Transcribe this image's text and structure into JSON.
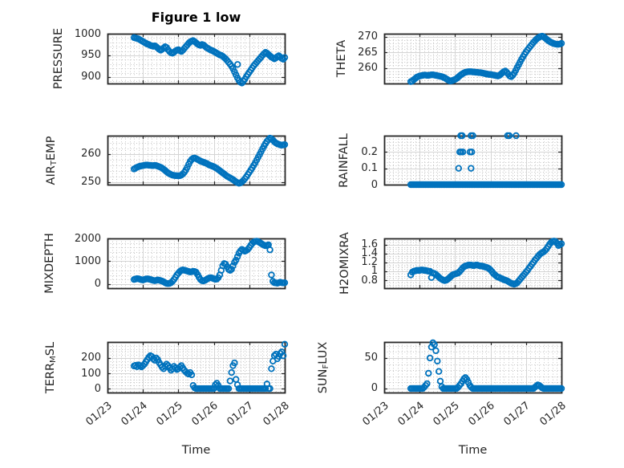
{
  "figure": {
    "title": "Figure 1 low",
    "xlabel": "Time",
    "x_tick_labels": [
      "01/23",
      "01/24",
      "01/25",
      "01/26",
      "01/27",
      "01/28"
    ]
  },
  "style": {
    "marker_color": "#0072BD",
    "axis_color": "#262626",
    "major_grid_color": "#d4d4d4",
    "minor_grid_color": "#c3c3c3",
    "background": "#ffffff"
  },
  "chart_data": [
    {
      "type": "scatter",
      "name": "PRESSURE",
      "col": 0,
      "row": 0,
      "ylabel": [
        {
          "text": "PRESSURE"
        }
      ],
      "ylim": [
        885,
        1000
      ],
      "yticks": [
        900,
        950,
        1000
      ],
      "ytick_labels": [
        "900",
        "950",
        "1000"
      ],
      "yminor": 10,
      "x_range_days": [
        0,
        5
      ],
      "t0": 0.75,
      "dt_days": 0.0416667,
      "values": [
        991,
        990,
        989,
        988,
        986,
        984,
        982,
        980,
        978,
        976,
        975,
        973,
        972,
        971,
        972,
        970,
        967,
        964,
        962,
        964,
        967,
        970,
        968,
        963,
        959,
        956,
        955,
        957,
        960,
        962,
        963,
        961,
        959,
        962,
        966,
        970,
        974,
        978,
        981,
        983,
        984,
        982,
        979,
        976,
        974,
        973,
        975,
        974,
        971,
        968,
        966,
        964,
        962,
        961,
        959,
        957,
        955,
        953,
        951,
        950,
        948,
        945,
        942,
        938,
        934,
        930,
        925,
        919,
        912,
        905,
        898,
        892,
        888,
        886,
        890,
        895,
        901,
        906,
        911,
        916,
        921,
        926,
        930,
        934,
        938,
        942,
        946,
        950,
        954,
        957,
        955,
        952,
        949,
        946,
        944,
        942,
        944,
        947,
        949,
        946,
        943,
        941,
        945
      ],
      "extra_points": [
        [
          3.67,
          929
        ]
      ]
    },
    {
      "type": "scatter",
      "name": "THETA",
      "col": 1,
      "row": 0,
      "ylabel": [
        {
          "text": "THETA"
        }
      ],
      "ylim": [
        255,
        271
      ],
      "yticks": [
        260,
        265,
        270
      ],
      "ytick_labels": [
        "260",
        "265",
        "270"
      ],
      "yminor": 1,
      "x_range_days": [
        0,
        5
      ],
      "t0": 0.75,
      "dt_days": 0.0416667,
      "values": [
        255.6,
        255.8,
        256.2,
        256.6,
        257.0,
        257.2,
        257.4,
        257.5,
        257.6,
        257.7,
        257.7,
        257.6,
        257.6,
        257.7,
        257.8,
        257.8,
        257.7,
        257.6,
        257.5,
        257.4,
        257.3,
        257.2,
        257.0,
        256.8,
        256.5,
        256.2,
        255.9,
        255.8,
        255.9,
        256.1,
        256.3,
        256.6,
        257.0,
        257.4,
        257.8,
        258.1,
        258.4,
        258.6,
        258.7,
        258.8,
        258.8,
        258.8,
        258.7,
        258.7,
        258.6,
        258.6,
        258.5,
        258.5,
        258.4,
        258.3,
        258.2,
        258.1,
        258.0,
        257.9,
        257.9,
        257.8,
        257.7,
        257.6,
        257.5,
        257.4,
        257.6,
        258.0,
        258.4,
        258.8,
        259.0,
        258.6,
        258.0,
        257.4,
        257.2,
        257.6,
        258.3,
        259.2,
        260.1,
        261.0,
        261.9,
        262.8,
        263.6,
        264.4,
        265.1,
        265.8,
        266.4,
        267.0,
        267.6,
        268.2,
        268.7,
        269.2,
        269.6,
        269.9,
        270.1,
        270.2,
        270.0,
        269.6,
        269.2,
        268.8,
        268.5,
        268.2,
        268.0,
        267.8,
        267.7,
        267.6,
        267.6,
        267.7,
        267.9
      ],
      "extra_points": []
    },
    {
      "type": "scatter",
      "name": "AIR_TEMP",
      "col": 0,
      "row": 1,
      "ylabel": [
        {
          "text": "AIR"
        },
        {
          "sub": "T"
        },
        {
          "text": "EMP"
        }
      ],
      "ylim": [
        249,
        266.5
      ],
      "yticks": [
        250,
        260
      ],
      "ytick_labels": [
        "250",
        "260"
      ],
      "yminor": 2,
      "x_range_days": [
        0,
        5
      ],
      "t0": 0.75,
      "dt_days": 0.0416667,
      "values": [
        254.6,
        254.9,
        255.2,
        255.4,
        255.6,
        255.7,
        255.8,
        255.9,
        256.0,
        256.0,
        255.9,
        255.9,
        255.8,
        255.8,
        255.9,
        255.8,
        255.6,
        255.4,
        255.2,
        254.9,
        254.5,
        254.1,
        253.6,
        253.2,
        252.9,
        252.6,
        252.4,
        252.3,
        252.2,
        252.2,
        252.1,
        252.2,
        252.4,
        252.8,
        253.4,
        254.2,
        255.2,
        256.3,
        257.3,
        258.0,
        258.4,
        258.5,
        258.3,
        258.0,
        257.7,
        257.4,
        257.2,
        257.0,
        256.8,
        256.6,
        256.3,
        256.0,
        255.8,
        255.6,
        255.4,
        255.1,
        254.8,
        254.4,
        254.0,
        253.6,
        253.2,
        252.8,
        252.4,
        252.0,
        251.7,
        251.4,
        251.1,
        250.8,
        250.4,
        250.0,
        249.7,
        249.5,
        249.6,
        250.0,
        250.5,
        251.1,
        251.8,
        252.6,
        253.4,
        254.2,
        255.0,
        255.9,
        256.8,
        257.8,
        258.8,
        259.8,
        260.8,
        261.8,
        262.8,
        263.7,
        264.5,
        265.1,
        265.6,
        265.4,
        264.9,
        264.3,
        263.9,
        263.6,
        263.4,
        263.2,
        263.1,
        263.2,
        263.3
      ],
      "extra_points": []
    },
    {
      "type": "scatter",
      "name": "RAINFALL",
      "col": 1,
      "row": 1,
      "ylabel": [
        {
          "text": "RAINFALL"
        }
      ],
      "ylim": [
        0,
        0.3
      ],
      "yticks": [
        0,
        0.1,
        0.2
      ],
      "ytick_labels": [
        "0",
        "0.1",
        "0.2"
      ],
      "yminor": 0.02,
      "x_range_days": [
        0,
        5
      ],
      "t0": 0.75,
      "dt_days": 0.0416667,
      "values": [
        0,
        0,
        0,
        0,
        0,
        0,
        0,
        0,
        0,
        0,
        0,
        0,
        0,
        0,
        0,
        0,
        0,
        0,
        0,
        0,
        0,
        0,
        0,
        0,
        0,
        0,
        0,
        0,
        0,
        0,
        0,
        0,
        0,
        0,
        0,
        0,
        0,
        0,
        0,
        0,
        0,
        0,
        0,
        0,
        0,
        0,
        0,
        0,
        0,
        0,
        0,
        0,
        0,
        0,
        0,
        0,
        0,
        0,
        0,
        0,
        0,
        0,
        0,
        0,
        0,
        0,
        0,
        0,
        0,
        0,
        0,
        0,
        0,
        0,
        0,
        0,
        0,
        0,
        0,
        0,
        0,
        0,
        0,
        0,
        0,
        0,
        0,
        0,
        0,
        0,
        0,
        0,
        0,
        0,
        0,
        0,
        0,
        0,
        0,
        0,
        0,
        0,
        0
      ],
      "extra_points": [
        [
          2.1,
          0.1
        ],
        [
          2.45,
          0.1
        ],
        [
          2.13,
          0.2
        ],
        [
          2.17,
          0.2
        ],
        [
          2.22,
          0.2
        ],
        [
          2.42,
          0.2
        ],
        [
          2.47,
          0.2
        ],
        [
          2.16,
          0.3
        ],
        [
          2.2,
          0.3
        ],
        [
          2.45,
          0.3
        ],
        [
          2.5,
          0.3
        ],
        [
          3.48,
          0.3
        ],
        [
          3.53,
          0.3
        ],
        [
          3.72,
          0.3
        ]
      ]
    },
    {
      "type": "scatter",
      "name": "MIXDEPTH",
      "col": 0,
      "row": 2,
      "ylabel": [
        {
          "text": "MIXDEPTH"
        }
      ],
      "ylim": [
        -180,
        2000
      ],
      "yticks": [
        0,
        1000,
        2000
      ],
      "ytick_labels": [
        "0",
        "1000",
        "2000"
      ],
      "yminor": 200,
      "x_range_days": [
        0,
        5
      ],
      "t0": 0.75,
      "dt_days": 0.0416667,
      "values": [
        200,
        220,
        240,
        230,
        210,
        190,
        180,
        200,
        220,
        230,
        220,
        200,
        180,
        160,
        150,
        160,
        180,
        170,
        150,
        130,
        100,
        60,
        30,
        20,
        30,
        60,
        120,
        200,
        300,
        400,
        480,
        550,
        600,
        620,
        610,
        590,
        570,
        550,
        530,
        540,
        560,
        550,
        520,
        420,
        300,
        200,
        150,
        140,
        160,
        200,
        240,
        270,
        280,
        260,
        230,
        210,
        220,
        280,
        400,
        600,
        800,
        900,
        870,
        760,
        640,
        600,
        650,
        800,
        950,
        1050,
        1200,
        1350,
        1450,
        1520,
        1480,
        1440,
        1470,
        1520,
        1600,
        1700,
        1780,
        1840,
        1870,
        1880,
        1860,
        1820,
        1780,
        1740,
        1700,
        1680,
        1700,
        1720,
        1500,
        400,
        120,
        60,
        50,
        40,
        60,
        80,
        60,
        50,
        60
      ],
      "extra_points": []
    },
    {
      "type": "scatter",
      "name": "H2OMIXRA",
      "col": 1,
      "row": 2,
      "ylabel": [
        {
          "text": "H2OMIXRA"
        }
      ],
      "ylim": [
        0.62,
        1.74
      ],
      "yticks": [
        0.8,
        1,
        1.2,
        1.4,
        1.6
      ],
      "ytick_labels": [
        "0.8",
        "1",
        "1.2",
        "1.4",
        "1.6"
      ],
      "yminor": 0.05,
      "x_range_days": [
        0,
        5
      ],
      "t0": 0.75,
      "dt_days": 0.0416667,
      "values": [
        0.92,
        0.98,
        1.0,
        1.01,
        1.02,
        1.02,
        1.02,
        1.03,
        1.03,
        1.02,
        1.02,
        1.01,
        1.0,
        1.0,
        0.86,
        0.96,
        0.95,
        0.93,
        0.9,
        0.87,
        0.84,
        0.82,
        0.8,
        0.79,
        0.8,
        0.82,
        0.85,
        0.88,
        0.91,
        0.93,
        0.94,
        0.95,
        0.96,
        0.99,
        1.03,
        1.07,
        1.1,
        1.12,
        1.13,
        1.14,
        1.14,
        1.14,
        1.13,
        1.13,
        1.14,
        1.14,
        1.13,
        1.12,
        1.12,
        1.11,
        1.1,
        1.09,
        1.08,
        1.06,
        1.03,
        0.99,
        0.95,
        0.92,
        0.89,
        0.87,
        0.86,
        0.84,
        0.83,
        0.81,
        0.8,
        0.79,
        0.77,
        0.75,
        0.73,
        0.72,
        0.71,
        0.72,
        0.74,
        0.78,
        0.82,
        0.86,
        0.9,
        0.94,
        0.98,
        1.02,
        1.07,
        1.11,
        1.16,
        1.2,
        1.25,
        1.29,
        1.33,
        1.37,
        1.4,
        1.42,
        1.44,
        1.47,
        1.51,
        1.56,
        1.61,
        1.65,
        1.67,
        1.68,
        1.67,
        1.63,
        1.58,
        1.6,
        1.62
      ],
      "extra_points": []
    },
    {
      "type": "scatter",
      "name": "TERR_MSL",
      "col": 0,
      "row": 3,
      "ylabel": [
        {
          "text": "TERR"
        },
        {
          "sub": "M"
        },
        {
          "text": "SL"
        }
      ],
      "ylim": [
        -26,
        305
      ],
      "yticks": [
        0,
        100,
        200
      ],
      "ytick_labels": [
        "0",
        "100",
        "200"
      ],
      "yminor": 20,
      "x_range_days": [
        0,
        5
      ],
      "t0": 0.75,
      "dt_days": 0.0416667,
      "values": [
        148,
        152,
        143,
        155,
        150,
        142,
        150,
        160,
        175,
        190,
        205,
        215,
        210,
        195,
        185,
        200,
        190,
        170,
        155,
        140,
        130,
        145,
        160,
        150,
        135,
        120,
        130,
        145,
        135,
        125,
        130,
        140,
        150,
        135,
        120,
        110,
        100,
        95,
        105,
        90,
        20,
        5,
        0,
        0,
        0,
        0,
        0,
        0,
        0,
        0,
        0,
        0,
        0,
        0,
        0,
        25,
        35,
        20,
        0,
        0,
        0,
        0,
        0,
        0,
        0,
        50,
        105,
        150,
        168,
        60,
        25,
        0,
        0,
        0,
        0,
        0,
        0,
        0,
        0,
        0,
        0,
        0,
        0,
        0,
        0,
        0,
        0,
        0,
        0,
        0,
        30,
        0,
        0,
        130,
        180,
        215,
        225,
        195,
        210,
        230,
        240,
        215,
        290
      ],
      "extra_points": []
    },
    {
      "type": "scatter",
      "name": "SUN_FLUX",
      "col": 1,
      "row": 3,
      "ylabel": [
        {
          "text": "SUN"
        },
        {
          "sub": "F"
        },
        {
          "text": "LUX"
        }
      ],
      "ylim": [
        -6.6,
        76.3
      ],
      "yticks": [
        0,
        50
      ],
      "ytick_labels": [
        "0",
        "50"
      ],
      "yminor": 10,
      "x_range_days": [
        0,
        5
      ],
      "t0": 0.75,
      "dt_days": 0.0416667,
      "values": [
        0,
        0,
        0,
        0,
        0,
        0,
        0,
        0,
        0,
        2,
        5,
        8,
        25,
        50,
        68,
        75,
        72,
        62,
        45,
        28,
        12,
        3,
        0,
        0,
        0,
        0,
        0,
        0,
        0,
        0,
        0,
        0,
        2,
        5,
        8,
        12,
        16,
        18,
        15,
        10,
        5,
        2,
        0,
        0,
        0,
        0,
        0,
        0,
        0,
        0,
        0,
        0,
        0,
        0,
        0,
        0,
        0,
        0,
        0,
        0,
        0,
        0,
        0,
        0,
        0,
        0,
        0,
        0,
        0,
        0,
        0,
        0,
        0,
        0,
        0,
        0,
        0,
        0,
        0,
        0,
        0,
        0,
        0,
        0,
        2,
        4,
        6,
        5,
        3,
        1,
        0,
        0,
        0,
        0,
        0,
        0,
        0,
        0,
        0,
        0,
        0,
        0,
        0
      ],
      "extra_points": []
    }
  ]
}
